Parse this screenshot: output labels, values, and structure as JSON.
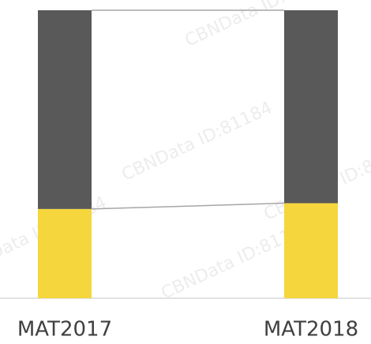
{
  "chart_data": {
    "type": "stacked_bar",
    "categories": [
      "MAT2017",
      "MAT2018"
    ],
    "series": [
      {
        "color": "#f5d63d",
        "values": [
          31,
          33
        ]
      },
      {
        "color": "#595959",
        "values": [
          69,
          67
        ]
      }
    ],
    "ylim": [
      0,
      100
    ],
    "connector_lines": true,
    "watermark": "CBNData ID:81184"
  }
}
